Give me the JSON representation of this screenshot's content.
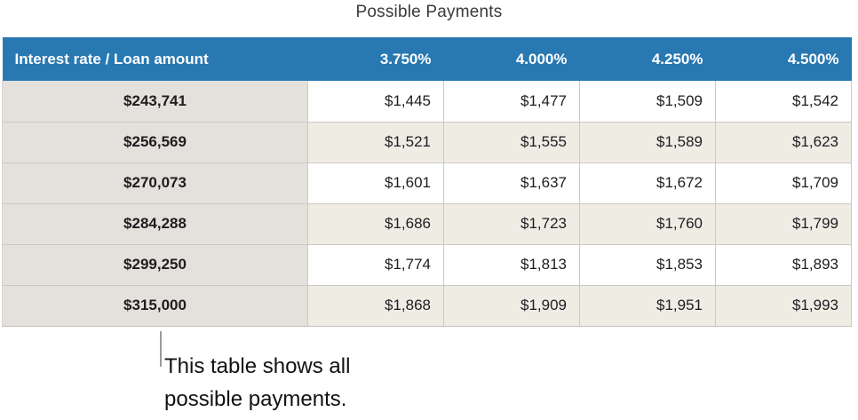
{
  "title": "Possible Payments",
  "table": {
    "header": {
      "corner": "Interest rate / Loan amount",
      "rates": [
        "3.750%",
        "4.000%",
        "4.250%",
        "4.500%"
      ]
    },
    "rows": [
      {
        "loan": "$243,741",
        "payments": [
          "$1,445",
          "$1,477",
          "$1,509",
          "$1,542"
        ]
      },
      {
        "loan": "$256,569",
        "payments": [
          "$1,521",
          "$1,555",
          "$1,589",
          "$1,623"
        ]
      },
      {
        "loan": "$270,073",
        "payments": [
          "$1,601",
          "$1,637",
          "$1,672",
          "$1,709"
        ]
      },
      {
        "loan": "$284,288",
        "payments": [
          "$1,686",
          "$1,723",
          "$1,760",
          "$1,799"
        ]
      },
      {
        "loan": "$299,250",
        "payments": [
          "$1,774",
          "$1,813",
          "$1,853",
          "$1,893"
        ]
      },
      {
        "loan": "$315,000",
        "payments": [
          "$1,868",
          "$1,909",
          "$1,951",
          "$1,993"
        ]
      }
    ]
  },
  "callout": {
    "text": "This table shows all possible payments."
  },
  "colors": {
    "header_bg": "#2878b2",
    "header_text": "#ffffff",
    "loan_column_bg": "#e4e1dc",
    "stripe_bg": "#efece4",
    "border": "#ccc9c3",
    "callout_line": "#9b9b9b"
  }
}
